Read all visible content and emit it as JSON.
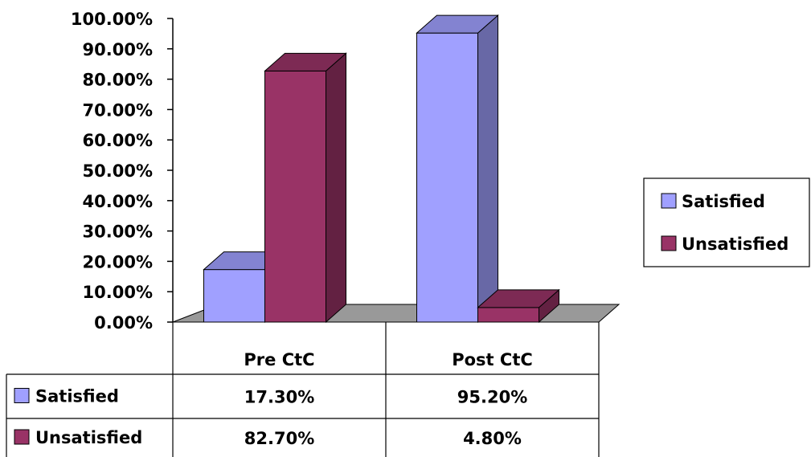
{
  "chart_data": {
    "type": "bar",
    "categories": [
      "Pre CtC",
      "Post CtC"
    ],
    "series": [
      {
        "name": "Satisfied",
        "values": [
          17.3,
          95.2
        ],
        "color": "#a0a0ff"
      },
      {
        "name": "Unsatisfied",
        "values": [
          82.7,
          4.8
        ],
        "color": "#993366"
      }
    ],
    "ylim": [
      0,
      100
    ],
    "yticks": [
      "0.00%",
      "10.00%",
      "20.00%",
      "30.00%",
      "40.00%",
      "50.00%",
      "60.00%",
      "70.00%",
      "80.00%",
      "90.00%",
      "100.00%"
    ],
    "data_table": {
      "rows": [
        {
          "label": "Satisfied",
          "cells": [
            "17.30%",
            "95.20%"
          ]
        },
        {
          "label": "Unsatisfied",
          "cells": [
            "82.70%",
            "4.80%"
          ]
        }
      ]
    },
    "legend": {
      "placement": "right",
      "entries": [
        "Satisfied",
        "Unsatisfied"
      ]
    },
    "three_d": true,
    "grid": false
  }
}
